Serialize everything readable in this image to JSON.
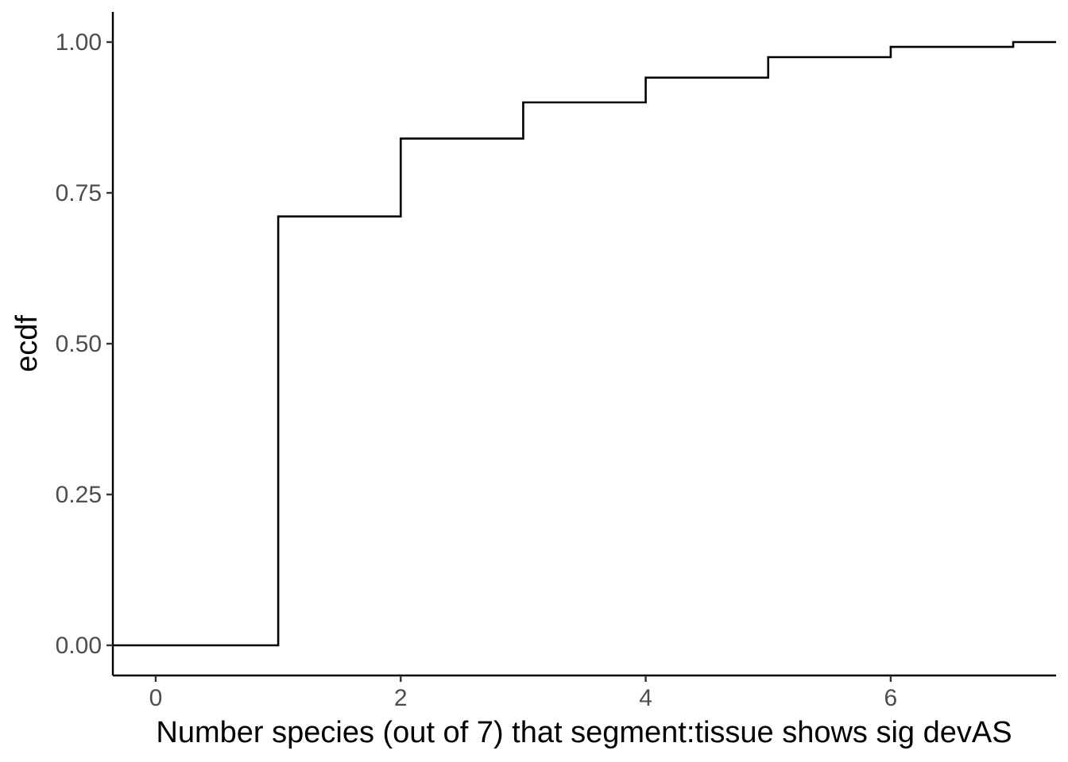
{
  "chart_data": {
    "type": "line",
    "subtype": "ecdf-step",
    "xlabel": "Number species (out of 7) that segment:tissue shows sig devAS",
    "ylabel": "ecdf",
    "xlim": [
      -0.35,
      7.35
    ],
    "ylim": [
      -0.05,
      1.05
    ],
    "x_ticks": [
      0,
      2,
      4,
      6
    ],
    "x_tick_labels": [
      "0",
      "2",
      "4",
      "6"
    ],
    "y_ticks": [
      0,
      0.25,
      0.5,
      0.75,
      1
    ],
    "y_tick_labels": [
      "0.00",
      "0.25",
      "0.50",
      "0.75",
      "1.00"
    ],
    "grid": false,
    "legend": "none",
    "line_color": "#000000",
    "x": [
      1,
      2,
      3,
      4,
      5,
      6,
      7
    ],
    "y": [
      0.711,
      0.84,
      0.9,
      0.941,
      0.975,
      0.992,
      1.0
    ]
  }
}
